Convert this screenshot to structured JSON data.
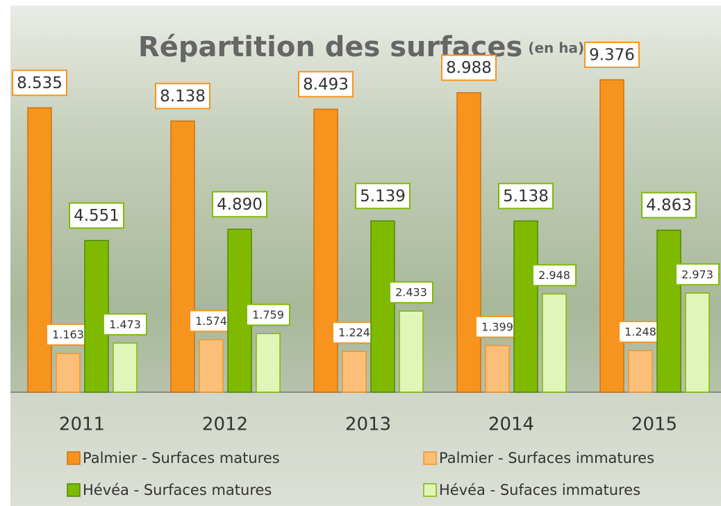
{
  "chart_data": {
    "type": "bar",
    "title": "Répartition des surfaces",
    "subtitle": "(en ha)",
    "categories": [
      "2011",
      "2012",
      "2013",
      "2014",
      "2015"
    ],
    "series": [
      {
        "name": "Palmier - Surfaces matures",
        "color": "#f7941d",
        "values": [
          8535,
          8138,
          8493,
          8988,
          9376
        ],
        "value_labels": [
          "8.535",
          "8.138",
          "8.493",
          "8.988",
          "9.376"
        ]
      },
      {
        "name": "Palmier - Surfaces immatures",
        "color": "#fbbf7a",
        "values": [
          1163,
          1574,
          1224,
          1399,
          1248
        ],
        "value_labels": [
          "1.163",
          "1.574",
          "1.224",
          "1.399",
          "1.248"
        ]
      },
      {
        "name": "Hévéa - Surfaces matures",
        "color": "#7fba00",
        "values": [
          4551,
          4890,
          5139,
          5138,
          4863
        ],
        "value_labels": [
          "4.551",
          "4.890",
          "5.139",
          "5.138",
          "4.863"
        ]
      },
      {
        "name": "Hévéa - Sufaces immatures",
        "color": "#e2f5b8",
        "values": [
          1473,
          1759,
          2433,
          2948,
          2973
        ],
        "value_labels": [
          "1.473",
          "1.759",
          "2.433",
          "2.948",
          "2.973"
        ]
      }
    ],
    "ylim": [
      0,
      10000
    ],
    "legend": "bottom"
  }
}
